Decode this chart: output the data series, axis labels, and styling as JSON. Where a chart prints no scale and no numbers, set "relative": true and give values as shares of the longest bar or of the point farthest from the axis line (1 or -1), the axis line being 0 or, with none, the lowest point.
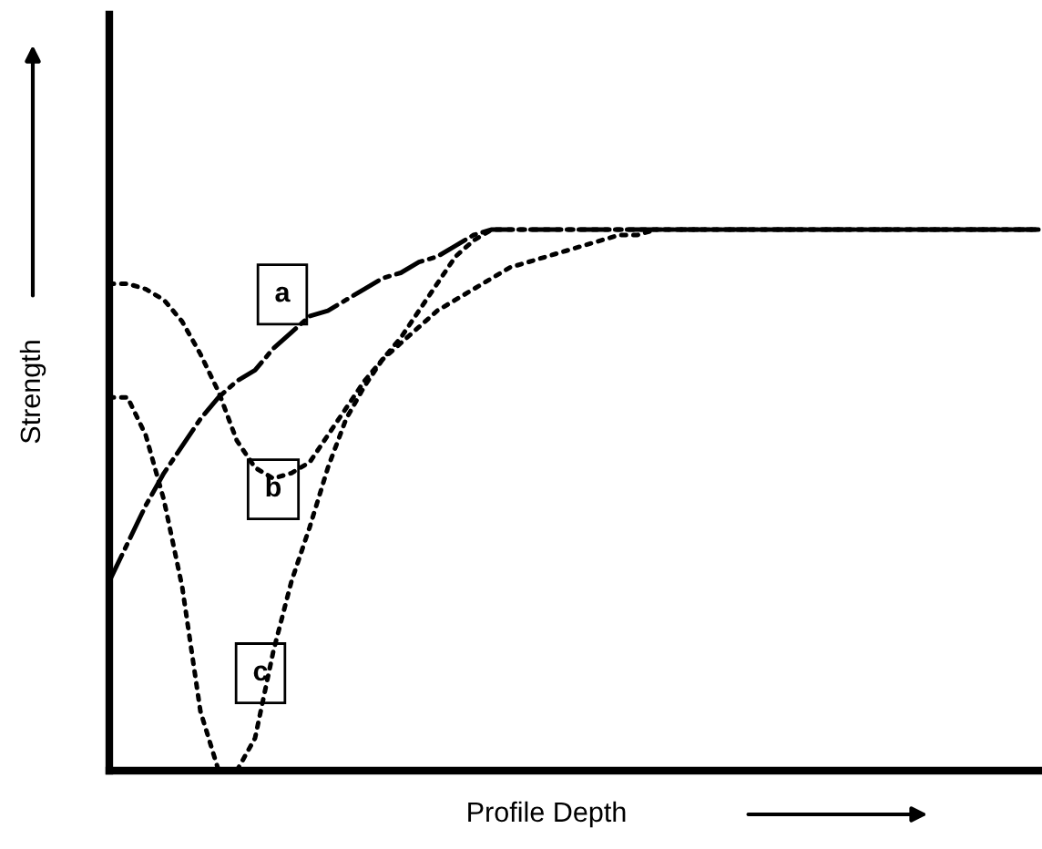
{
  "chart_data": {
    "type": "line",
    "relative": true,
    "xlabel": "Profile Depth",
    "ylabel": "Strength",
    "legend": false,
    "marker": "none",
    "categories": [
      null,
      null,
      null,
      null,
      null,
      null,
      null,
      null,
      null,
      null,
      null,
      null,
      null,
      null,
      null,
      null,
      null,
      null,
      null,
      null,
      null,
      null,
      null,
      null,
      null,
      null,
      null,
      null,
      null,
      null,
      null,
      null,
      null,
      null,
      null,
      null,
      null,
      null,
      null,
      null,
      null,
      null,
      null,
      null,
      null,
      null,
      null,
      null,
      null,
      null,
      null,
      null
    ],
    "series": [
      {
        "name": "a",
        "color": "#000000",
        "line_style": "dashdot",
        "values": [
          0.35,
          0.42,
          0.49,
          0.55,
          0.6,
          0.65,
          0.69,
          0.72,
          0.74,
          0.78,
          0.81,
          0.84,
          0.85,
          0.87,
          0.89,
          0.91,
          0.92,
          0.94,
          0.95,
          0.97,
          0.99,
          1,
          1,
          1,
          1,
          1,
          1,
          1,
          1,
          1,
          1,
          1,
          1,
          1,
          1,
          1,
          1,
          1,
          1,
          1,
          1,
          1,
          1,
          1,
          1,
          1,
          1,
          1,
          1,
          1,
          1,
          1
        ]
      },
      {
        "name": "b",
        "color": "#000000",
        "line_style": "dotted",
        "values": [
          0.9,
          0.9,
          0.89,
          0.87,
          0.83,
          0.77,
          0.7,
          0.61,
          0.56,
          0.54,
          0.55,
          0.57,
          0.62,
          0.67,
          0.72,
          0.76,
          0.79,
          0.82,
          0.85,
          0.87,
          0.89,
          0.91,
          0.93,
          0.94,
          0.95,
          0.96,
          0.97,
          0.98,
          0.99,
          0.99,
          1,
          1,
          1,
          1,
          1,
          1,
          1,
          1,
          1,
          1,
          1,
          1,
          1,
          1,
          1,
          1,
          1,
          1,
          1,
          1,
          1,
          1
        ]
      },
      {
        "name": "c",
        "color": "#000000",
        "line_style": "dotted",
        "values": [
          0.69,
          0.69,
          0.62,
          0.5,
          0.34,
          0.11,
          0.0,
          0.0,
          0.06,
          0.22,
          0.35,
          0.45,
          0.56,
          0.65,
          0.71,
          0.76,
          0.8,
          0.85,
          0.9,
          0.95,
          0.98,
          1,
          1,
          1,
          1,
          1,
          1,
          1,
          1,
          1,
          1,
          1,
          1,
          1,
          1,
          1,
          1,
          1,
          1,
          1,
          1,
          1,
          1,
          1,
          1,
          1,
          1,
          1,
          1,
          1,
          1,
          1
        ]
      }
    ]
  }
}
